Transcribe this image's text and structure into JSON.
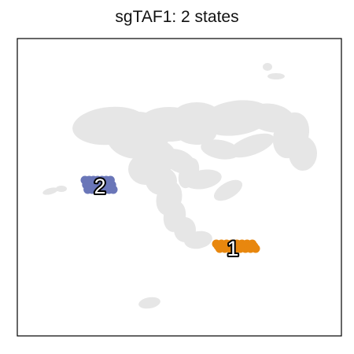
{
  "chart_data": {
    "type": "scatter",
    "title": "sgTAF1: 2 states",
    "xlabel": "",
    "ylabel": "",
    "grid": false,
    "axis_ticks": false,
    "background_color": "#e6e6e6",
    "states": [
      {
        "label": "1",
        "color": "#e8870e"
      },
      {
        "label": "2",
        "color": "#6a76b8"
      }
    ]
  }
}
